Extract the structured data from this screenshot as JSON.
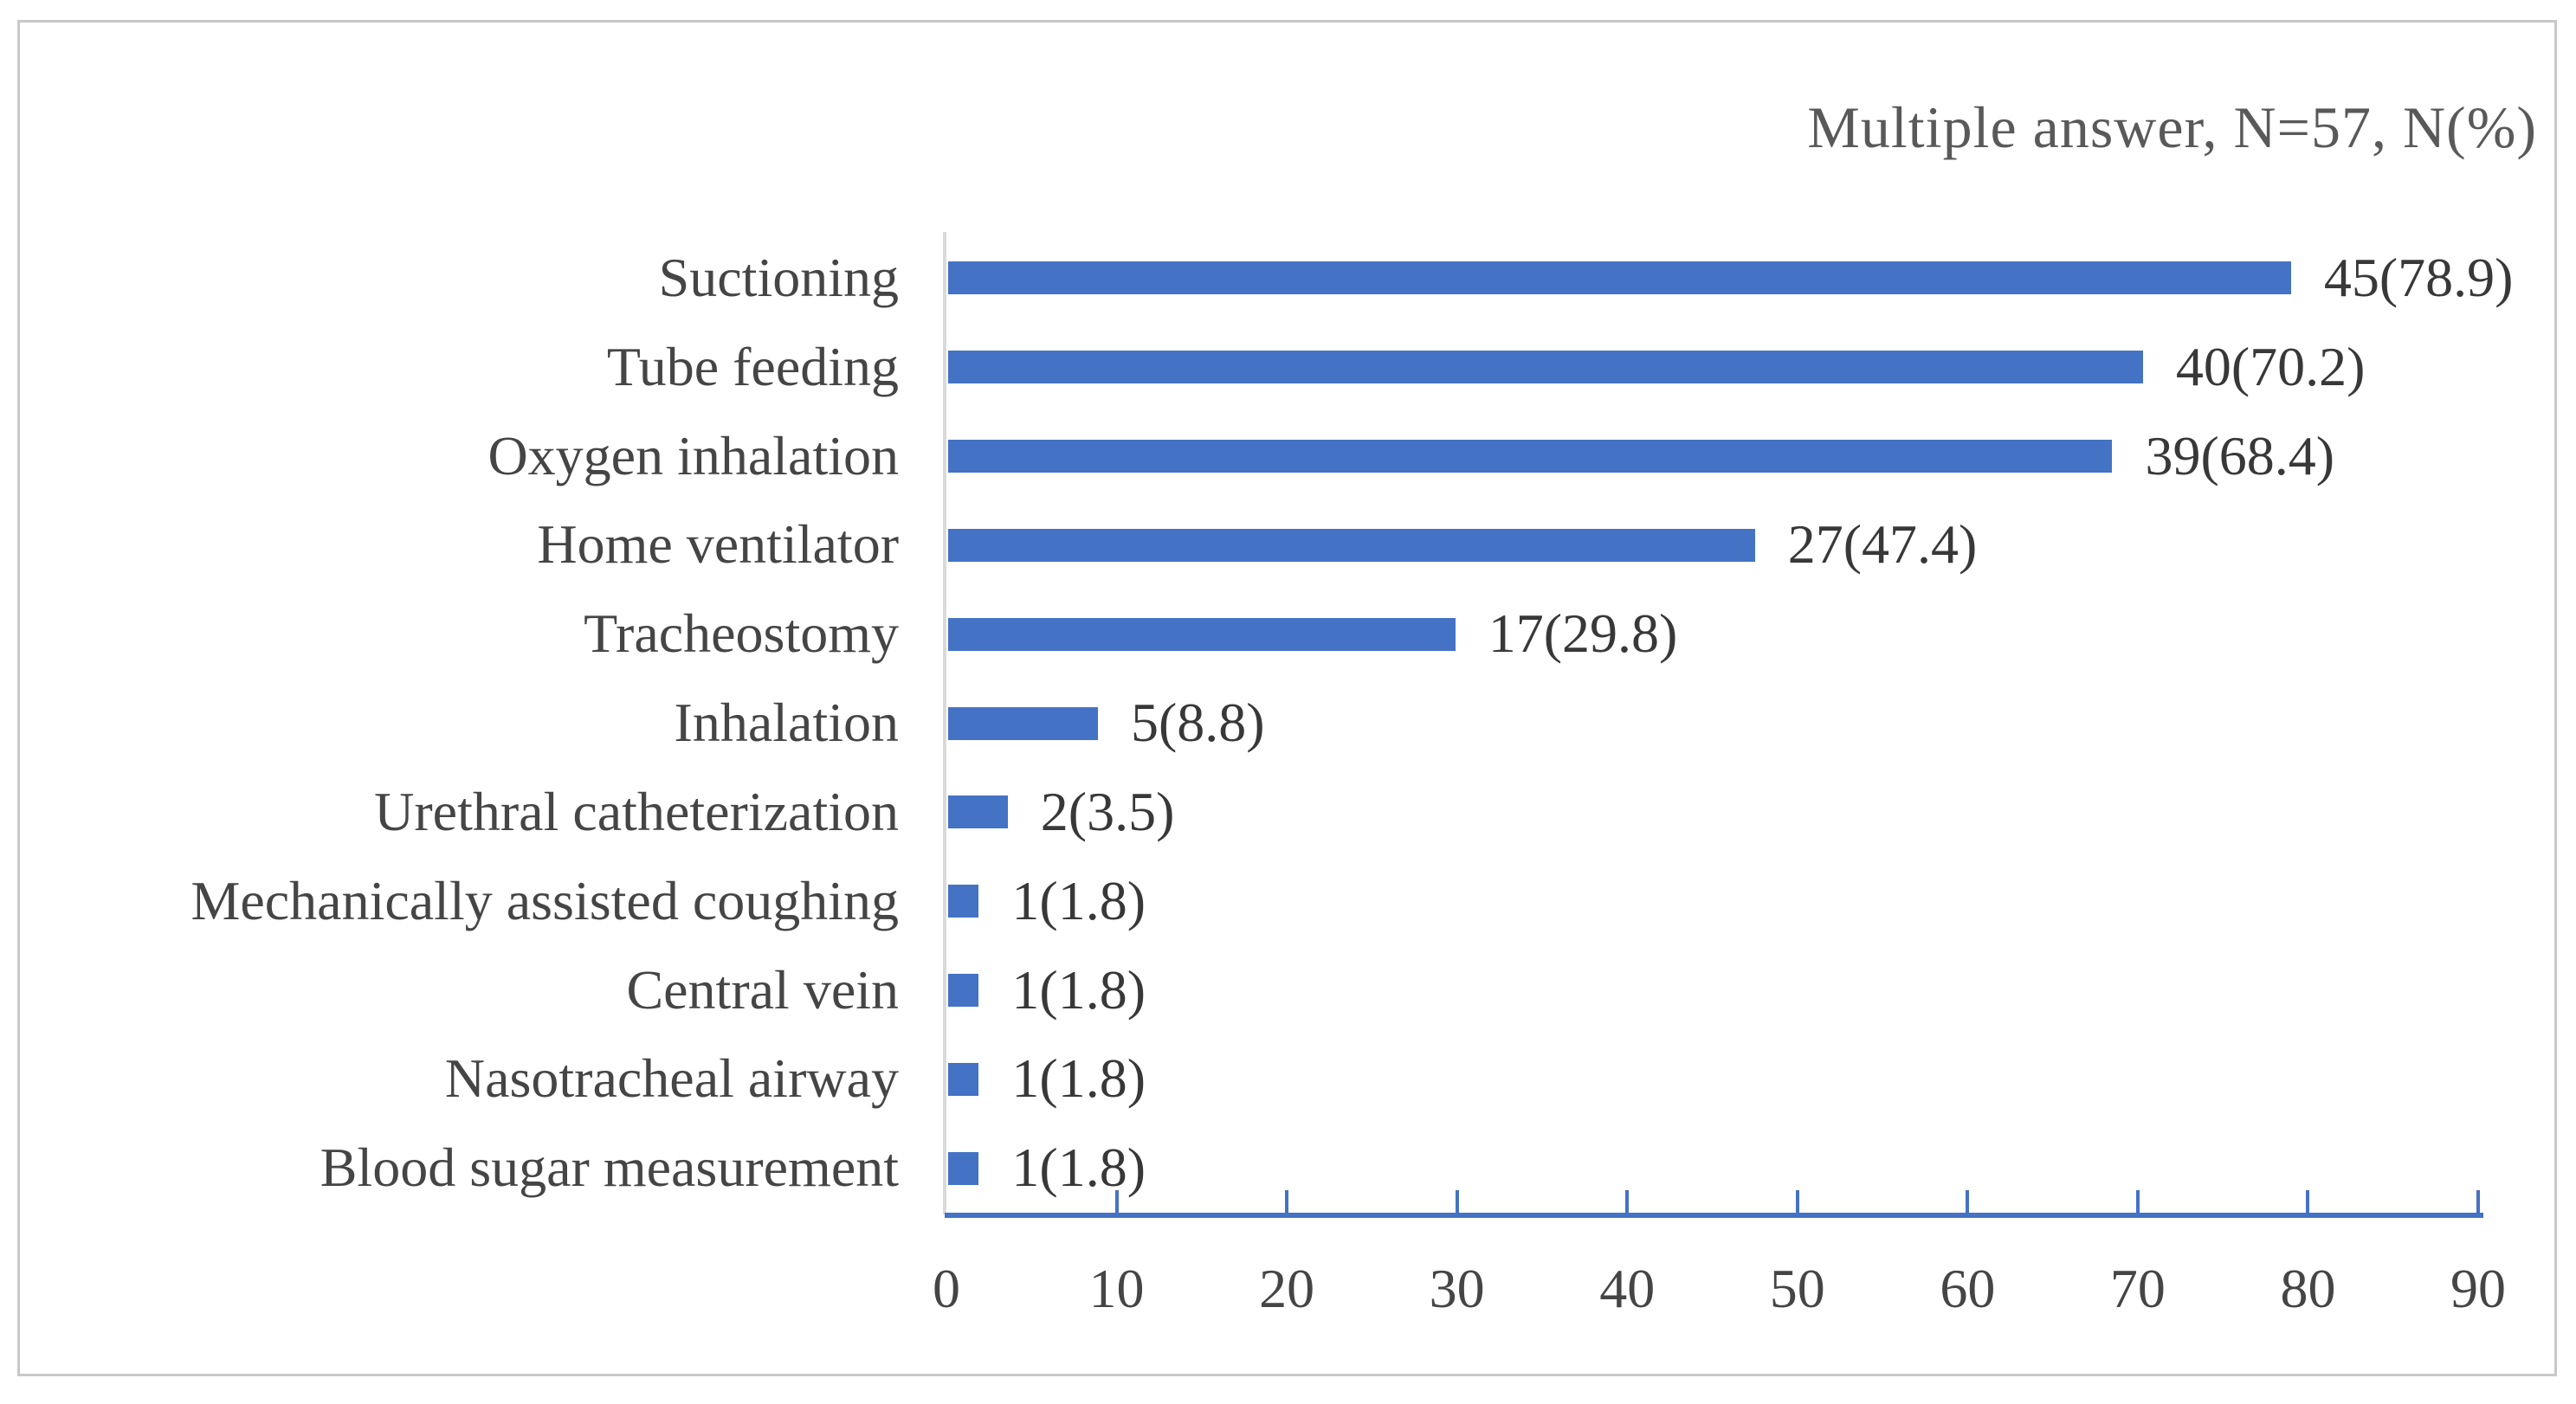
{
  "figure": {
    "background": "#ffffff",
    "frame_border": "#c8c8c8"
  },
  "chart_data": {
    "type": "bar",
    "orientation": "horizontal",
    "title": "Multiple answer, N=57, N(%)",
    "n_total": 57,
    "categories": [
      "Suctioning",
      "Tube feeding",
      "Oxygen inhalation",
      "Home ventilator",
      "Tracheostomy",
      "Inhalation",
      "Urethral catheterization",
      "Mechanically assisted coughing",
      "Central vein",
      "Nasotracheal airway",
      "Blood sugar measurement"
    ],
    "counts": [
      45,
      40,
      39,
      27,
      17,
      5,
      2,
      1,
      1,
      1,
      1
    ],
    "values": [
      78.9,
      70.2,
      68.4,
      47.4,
      29.8,
      8.8,
      3.5,
      1.8,
      1.8,
      1.8,
      1.8
    ],
    "data_labels": [
      "45(78.9)",
      "40(70.2)",
      "39(68.4)",
      "27(47.4)",
      "17(29.8)",
      "5(8.8)",
      "2(3.5)",
      "1(1.8)",
      "1(1.8)",
      "1(1.8)",
      "1(1.8)"
    ],
    "xlim": [
      0,
      90
    ],
    "x_ticks": [
      "0",
      "10",
      "20",
      "30",
      "40",
      "50",
      "60",
      "70",
      "80",
      "90"
    ],
    "grid": false,
    "legend": "none",
    "colors": {
      "bar": "#4472C4",
      "x_axis_line": "#4472C4",
      "y_axis_line": "#D9D9D9",
      "title_text": "#595959",
      "category_text": "#454545",
      "value_text": "#383838",
      "frame_border": "#C8C8C8"
    }
  }
}
